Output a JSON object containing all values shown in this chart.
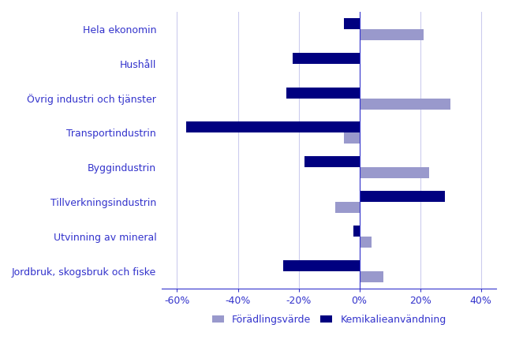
{
  "categories": [
    "Hela ekonomin",
    "Hushåll",
    "Övrig industri och tjänster",
    "Transportindustrin",
    "Byggindustrin",
    "Tillverkningsindustrin",
    "Utvinning av mineral",
    "Jordbruk, skogsbruk och fiske"
  ],
  "foradlingsvarde": [
    21,
    0,
    30,
    -5,
    23,
    -8,
    4,
    8
  ],
  "kemikalieanvandning": [
    -5,
    -22,
    -24,
    -57,
    -18,
    28,
    -2,
    -25
  ],
  "color_foradling": "#9999cc",
  "color_kemikalie": "#000080",
  "xlim": [
    -65,
    45
  ],
  "xticks": [
    -60,
    -40,
    -20,
    0,
    20,
    40
  ],
  "xtick_labels": [
    "-60%",
    "-40%",
    "-20%",
    "0%",
    "20%",
    "40%"
  ],
  "label_foradling": "Förädlingsvärde",
  "label_kemikalie": "Kemikalieanvändning",
  "bar_height": 0.32,
  "label_color": "#3333cc",
  "background_color": "#ffffff",
  "grid_color": "#ccccee"
}
